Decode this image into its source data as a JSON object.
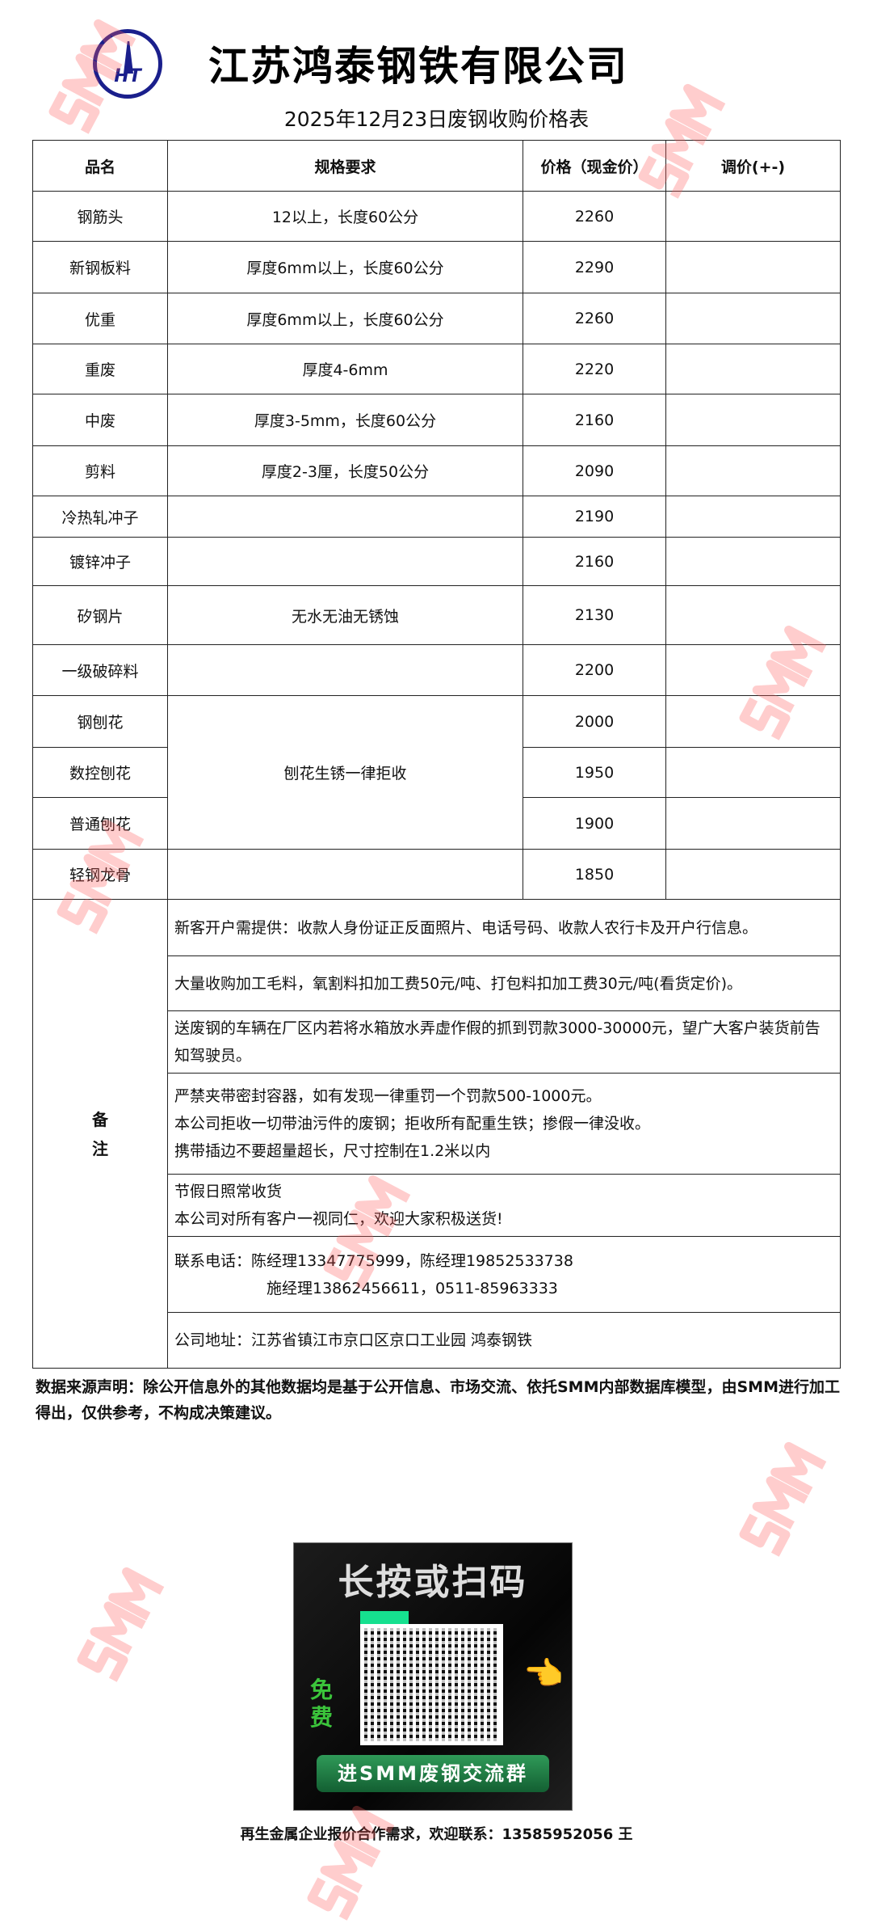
{
  "header": {
    "logo_text": "HT",
    "company": "江苏鸿泰钢铁有限公司",
    "subtitle": "2025年12月23日废钢收购价格表"
  },
  "table": {
    "columns": [
      "品名",
      "规格要求",
      "价格（现金价）",
      "调价(+-)"
    ],
    "rows": [
      {
        "name": "钢筋头",
        "spec": "12以上，长度60公分",
        "price": "2260",
        "adj": ""
      },
      {
        "name": "新钢板料",
        "spec": "厚度6mm以上，长度60公分",
        "price": "2290",
        "adj": ""
      },
      {
        "name": "优重",
        "spec": "厚度6mm以上，长度60公分",
        "price": "2260",
        "adj": ""
      },
      {
        "name": "重废",
        "spec": "厚度4-6mm",
        "price": "2220",
        "adj": ""
      },
      {
        "name": "中废",
        "spec": "厚度3-5mm，长度60公分",
        "price": "2160",
        "adj": ""
      },
      {
        "name": "剪料",
        "spec": "厚度2-3厘，长度50公分",
        "price": "2090",
        "adj": ""
      },
      {
        "name": "冷热轧冲子",
        "spec": "",
        "price": "2190",
        "adj": ""
      },
      {
        "name": "镀锌冲子",
        "spec": "",
        "price": "2160",
        "adj": ""
      },
      {
        "name": "矽钢片",
        "spec": "无水无油无锈蚀",
        "price": "2130",
        "adj": ""
      },
      {
        "name": "一级破碎料",
        "spec": "",
        "price": "2200",
        "adj": ""
      },
      {
        "name": "钢刨花",
        "spec": "刨花生锈一律拒收",
        "price": "2000",
        "adj": ""
      },
      {
        "name": "数控刨花",
        "price": "1950",
        "adj": ""
      },
      {
        "name": "普通刨花",
        "price": "1900",
        "adj": ""
      },
      {
        "name": "轻钢龙骨",
        "spec": "",
        "price": "1850",
        "adj": ""
      }
    ],
    "remarks_label": "备注",
    "remarks": [
      [
        "新客开户需提供：收款人身份证正反面照片、电话号码、收款人农行卡及开户行信息。"
      ],
      [
        "大量收购加工毛料，氧割料扣加工费50元/吨、打包料扣加工费30元/吨(看货定价)。"
      ],
      [
        "送废钢的车辆在厂区内若将水箱放水弄虚作假的抓到罚款3000-30000元，望广大客户装货前告知驾驶员。"
      ],
      [
        "严禁夹带密封容器，如有发现一律重罚一个罚款500-1000元。",
        "本公司拒收一切带油污件的废钢；拒收所有配重生铁；掺假一律没收。",
        "携带插边不要超量超长，尺寸控制在1.2米以内"
      ],
      [
        "节假日照常收货",
        "本公司对所有客户一视同仁，欢迎大家积极送货!"
      ],
      [
        "联系电话：陈经理13347775999，陈经理19852533738",
        "施经理13862456611，0511-85963333"
      ],
      [
        "公司地址：江苏省镇江市京口区京口工业园 鸿泰钢铁"
      ]
    ]
  },
  "disclaimer": "数据来源声明：除公开信息外的其他数据均是基于公开信息、市场交流、依托SMM内部数据库模型，由SMM进行加工得出，仅供参考，不构成决策建议。",
  "qr_card": {
    "title": "长按或扫码",
    "badge": "免费",
    "button": "进SMM废钢交流群"
  },
  "footer": "再生金属企业报价合作需求，欢迎联系：13585952056 王",
  "watermark": "SMM",
  "colors": {
    "logo": "#1a1f8c",
    "watermark": "#ff5a5a",
    "qr_button": "#2f9a58"
  }
}
